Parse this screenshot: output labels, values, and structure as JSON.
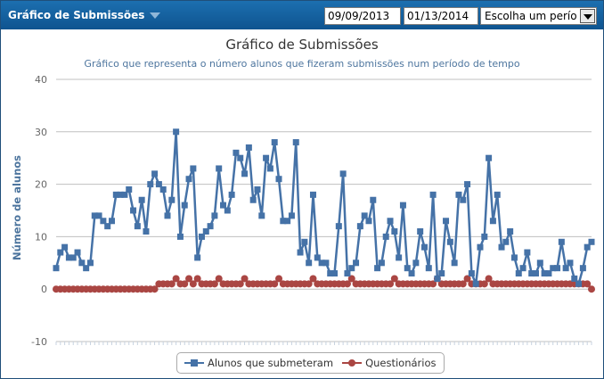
{
  "header": {
    "title": "Gráfico de Submissões",
    "start_date": "09/09/2013",
    "end_date": "01/13/2014",
    "period_select": "Escolha um período"
  },
  "chart_data": {
    "type": "line",
    "title": "Gráfico de Submissões",
    "subtitle": "Gráfico que representa o número alunos que fizeram submissões num período de tempo",
    "xlabel": "",
    "ylabel": "Número de alunos",
    "ylim": [
      -10,
      40
    ],
    "yticks": [
      -10,
      0,
      10,
      20,
      30,
      40
    ],
    "grid": true,
    "legend_position": "bottom-center",
    "colors": {
      "alunos": "#4572a7",
      "questionarios": "#aa4643"
    },
    "series": [
      {
        "name": "Alunos que submeteram",
        "values": [
          4,
          7,
          8,
          6,
          6,
          7,
          5,
          4,
          5,
          14,
          14,
          13,
          12,
          13,
          18,
          18,
          18,
          19,
          15,
          12,
          17,
          11,
          20,
          22,
          20,
          19,
          14,
          17,
          30,
          10,
          16,
          21,
          23,
          6,
          10,
          11,
          12,
          14,
          23,
          16,
          15,
          18,
          26,
          25,
          22,
          27,
          17,
          19,
          14,
          25,
          23,
          28,
          21,
          13,
          13,
          14,
          28,
          7,
          9,
          5,
          18,
          6,
          5,
          5,
          3,
          3,
          12,
          22,
          3,
          4,
          5,
          12,
          14,
          13,
          17,
          4,
          5,
          10,
          13,
          11,
          6,
          16,
          4,
          3,
          5,
          11,
          8,
          4,
          18,
          2,
          3,
          13,
          9,
          5,
          18,
          17,
          20,
          3,
          1,
          8,
          10,
          25,
          13,
          18,
          8,
          9,
          11,
          6,
          3,
          4,
          7,
          3,
          3,
          5,
          3,
          3,
          4,
          4,
          9,
          4,
          5,
          2,
          1,
          4,
          8,
          9
        ]
      },
      {
        "name": "Questionários",
        "values": [
          0,
          0,
          0,
          0,
          0,
          0,
          0,
          0,
          0,
          0,
          0,
          0,
          0,
          0,
          0,
          0,
          0,
          0,
          0,
          0,
          0,
          0,
          0,
          0,
          1,
          1,
          1,
          1,
          2,
          1,
          1,
          2,
          1,
          2,
          1,
          1,
          1,
          1,
          2,
          1,
          1,
          1,
          1,
          1,
          2,
          1,
          1,
          1,
          1,
          1,
          1,
          1,
          2,
          1,
          1,
          1,
          1,
          1,
          1,
          1,
          2,
          1,
          1,
          1,
          1,
          1,
          1,
          1,
          1,
          2,
          1,
          1,
          1,
          1,
          1,
          1,
          1,
          1,
          1,
          2,
          1,
          1,
          1,
          1,
          1,
          1,
          1,
          1,
          1,
          2,
          1,
          1,
          1,
          1,
          1,
          1,
          2,
          1,
          1,
          1,
          1,
          2,
          1,
          1,
          1,
          1,
          1,
          1,
          1,
          1,
          1,
          1,
          1,
          1,
          1,
          1,
          1,
          1,
          1,
          1,
          1,
          1,
          1,
          1,
          1,
          0
        ]
      }
    ]
  }
}
